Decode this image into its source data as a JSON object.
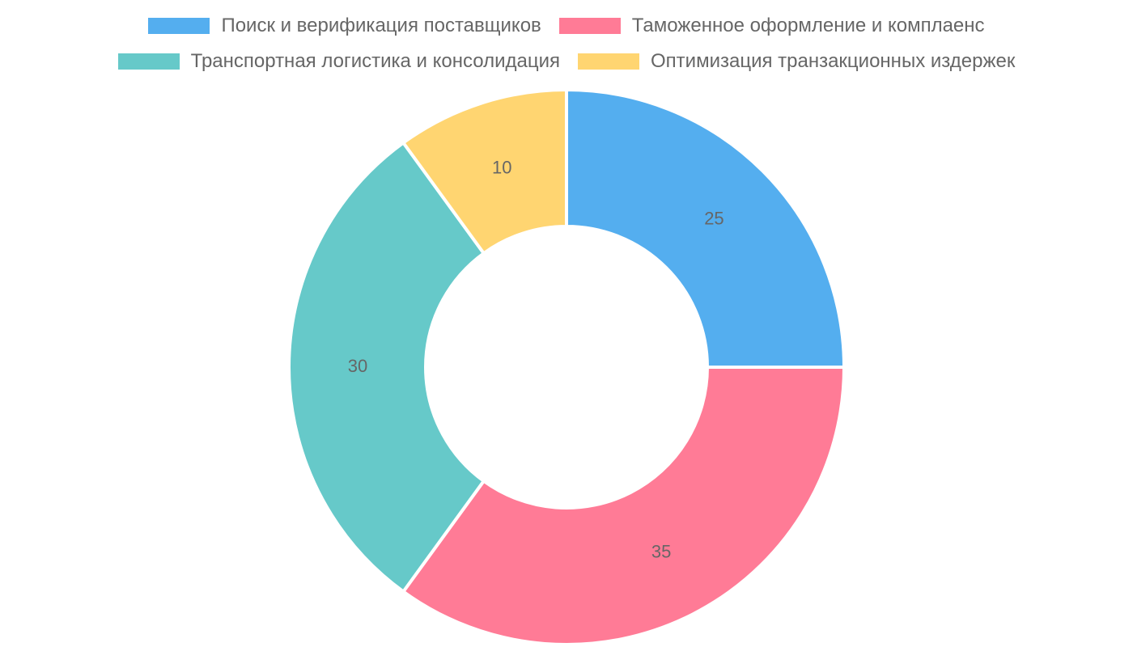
{
  "chart_data": {
    "type": "pie",
    "donut": true,
    "legend_position": "top",
    "categories": [
      "Поиск и верификация поставщиков",
      "Таможенное оформление и комплаенс",
      "Транспортная логистика и консолидация",
      "Оптимизация транзакционных издержек"
    ],
    "values": [
      25,
      35,
      30,
      10
    ],
    "colors": [
      "#54aeef",
      "#ff7b96",
      "#66c9c9",
      "#ffd571"
    ]
  }
}
